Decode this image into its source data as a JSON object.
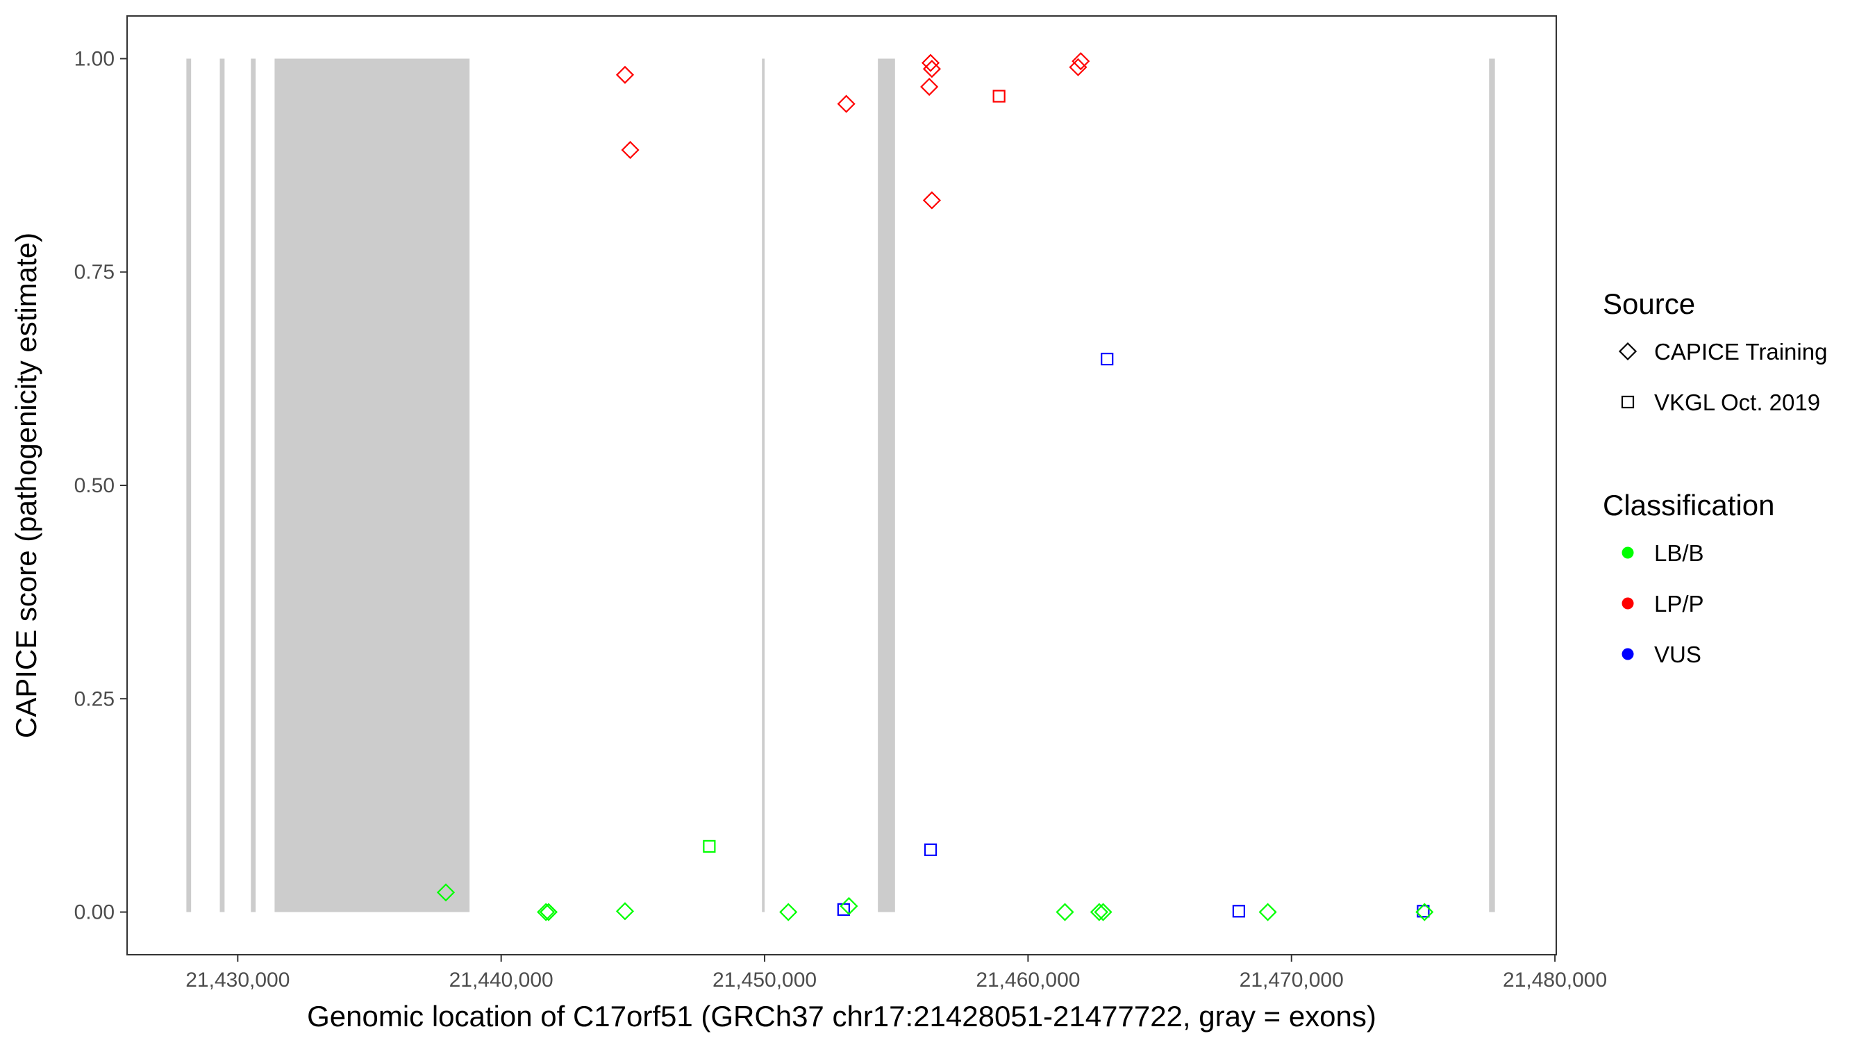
{
  "chart_data": {
    "type": "scatter",
    "xlabel": "Genomic location of C17orf51 (GRCh37 chr17:21428051-21477722, gray = exons)",
    "ylabel": "CAPICE score (pathogenicity estimate)",
    "xlim": [
      21425800,
      21480050
    ],
    "ylim": [
      -0.05,
      1.05
    ],
    "x_ticks": [
      21430000,
      21440000,
      21450000,
      21460000,
      21470000,
      21480000
    ],
    "x_tick_labels": [
      "21,430,000",
      "21,440,000",
      "21,450,000",
      "21,460,000",
      "21,470,000",
      "21,480,000"
    ],
    "y_ticks": [
      0,
      0.25,
      0.5,
      0.75,
      1.0
    ],
    "y_tick_labels": [
      "0.00",
      "0.25",
      "0.50",
      "0.75",
      "1.00"
    ],
    "grid": false,
    "exons": [
      [
        21428051,
        21428230
      ],
      [
        21429320,
        21429500
      ],
      [
        21430500,
        21430680
      ],
      [
        21431400,
        21438800
      ],
      [
        21449900,
        21450000
      ],
      [
        21454300,
        21454950
      ],
      [
        21477500,
        21477722
      ]
    ],
    "exon_color": "#cccccc",
    "colors": {
      "LB/B": "#00ff00",
      "LP/P": "#ff0000",
      "VUS": "#0000ff"
    },
    "legend_position": "right",
    "legend": {
      "source_title": "Source",
      "source_items": [
        {
          "label": "CAPICE Training",
          "shape": "diamond"
        },
        {
          "label": "VKGL Oct. 2019",
          "shape": "square"
        }
      ],
      "class_title": "Classification",
      "class_items": [
        {
          "label": "LB/B",
          "color": "#00ff00"
        },
        {
          "label": "LP/P",
          "color": "#ff0000"
        },
        {
          "label": "VUS",
          "color": "#0000ff"
        }
      ]
    },
    "points": [
      {
        "x": 21444700,
        "y": 0.981,
        "source": "CAPICE Training",
        "class": "LP/P"
      },
      {
        "x": 21444900,
        "y": 0.893,
        "source": "CAPICE Training",
        "class": "LP/P"
      },
      {
        "x": 21453100,
        "y": 0.947,
        "source": "CAPICE Training",
        "class": "LP/P"
      },
      {
        "x": 21456300,
        "y": 0.995,
        "source": "CAPICE Training",
        "class": "LP/P"
      },
      {
        "x": 21456350,
        "y": 0.988,
        "source": "CAPICE Training",
        "class": "LP/P"
      },
      {
        "x": 21456250,
        "y": 0.967,
        "source": "CAPICE Training",
        "class": "LP/P"
      },
      {
        "x": 21456350,
        "y": 0.834,
        "source": "CAPICE Training",
        "class": "LP/P"
      },
      {
        "x": 21458900,
        "y": 0.956,
        "source": "VKGL Oct. 2019",
        "class": "LP/P"
      },
      {
        "x": 21462000,
        "y": 0.997,
        "source": "CAPICE Training",
        "class": "LP/P"
      },
      {
        "x": 21461900,
        "y": 0.99,
        "source": "CAPICE Training",
        "class": "LP/P"
      },
      {
        "x": 21463000,
        "y": 0.648,
        "source": "VKGL Oct. 2019",
        "class": "VUS"
      },
      {
        "x": 21456300,
        "y": 0.073,
        "source": "VKGL Oct. 2019",
        "class": "VUS"
      },
      {
        "x": 21453000,
        "y": 0.003,
        "source": "VKGL Oct. 2019",
        "class": "VUS"
      },
      {
        "x": 21468000,
        "y": 0.001,
        "source": "VKGL Oct. 2019",
        "class": "VUS"
      },
      {
        "x": 21475000,
        "y": 0.001,
        "source": "VKGL Oct. 2019",
        "class": "VUS"
      },
      {
        "x": 21437900,
        "y": 0.023,
        "source": "CAPICE Training",
        "class": "LB/B"
      },
      {
        "x": 21441700,
        "y": 0.0,
        "source": "CAPICE Training",
        "class": "LB/B"
      },
      {
        "x": 21441800,
        "y": 0.0,
        "source": "CAPICE Training",
        "class": "LB/B"
      },
      {
        "x": 21444700,
        "y": 0.001,
        "source": "CAPICE Training",
        "class": "LB/B"
      },
      {
        "x": 21447900,
        "y": 0.077,
        "source": "VKGL Oct. 2019",
        "class": "LB/B"
      },
      {
        "x": 21450900,
        "y": 0.0,
        "source": "CAPICE Training",
        "class": "LB/B"
      },
      {
        "x": 21453200,
        "y": 0.007,
        "source": "CAPICE Training",
        "class": "LB/B"
      },
      {
        "x": 21461400,
        "y": 0.0,
        "source": "CAPICE Training",
        "class": "LB/B"
      },
      {
        "x": 21462700,
        "y": 0.0,
        "source": "CAPICE Training",
        "class": "LB/B"
      },
      {
        "x": 21462850,
        "y": 0.0,
        "source": "CAPICE Training",
        "class": "LB/B"
      },
      {
        "x": 21469100,
        "y": 0.0,
        "source": "CAPICE Training",
        "class": "LB/B"
      },
      {
        "x": 21475050,
        "y": 0.0,
        "source": "CAPICE Training",
        "class": "LB/B"
      }
    ]
  }
}
